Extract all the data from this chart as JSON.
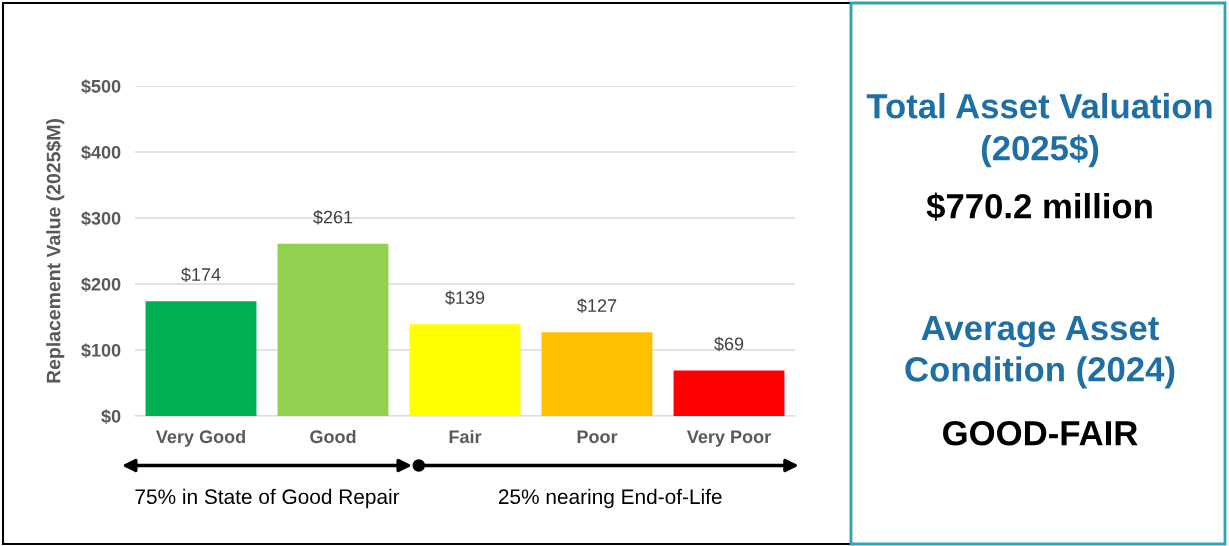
{
  "chart_data": [
    {
      "type": "bar",
      "ylabel": "Replacement Value (2025$M)",
      "categories": [
        "Very Good",
        "Good",
        "Fair",
        "Poor",
        "Very Poor"
      ],
      "values": [
        174,
        261,
        139,
        127,
        69
      ],
      "colors": [
        "#00b050",
        "#92d050",
        "#ffff00",
        "#ffc000",
        "#ff0000"
      ],
      "value_labels": [
        "$174",
        "$261",
        "$139",
        "$127",
        "$69"
      ],
      "ylim": [
        0,
        500
      ],
      "yticks": [
        {
          "value": 0,
          "label": "$0"
        },
        {
          "value": 100,
          "label": "$100"
        },
        {
          "value": 200,
          "label": "$200"
        },
        {
          "value": 300,
          "label": "$300"
        },
        {
          "value": 400,
          "label": "$400"
        },
        {
          "value": 500,
          "label": "$500"
        }
      ],
      "grid": "y",
      "legend": false,
      "annotations": [
        "75% in State of Good Repair",
        "25% nearing End-of-Life"
      ]
    },
    {
      "type": "other",
      "annotations": [
        "Total Asset Valuation (2025$)",
        "$770.2 million",
        "Average Asset Condition (2024)",
        "GOOD-FAIR"
      ]
    }
  ]
}
